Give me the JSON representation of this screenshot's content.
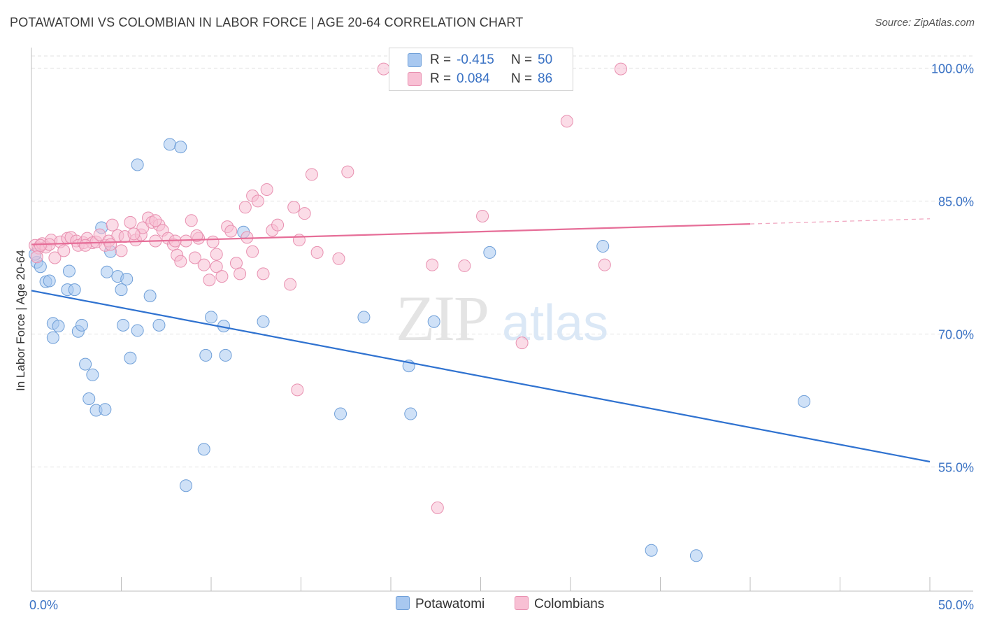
{
  "title": "POTAWATOMI VS COLOMBIAN IN LABOR FORCE | AGE 20-64 CORRELATION CHART",
  "source": "Source: ZipAtlas.com",
  "watermark": {
    "zip": "ZIP",
    "atlas": "atlas"
  },
  "stats": [
    {
      "r_label": "R =",
      "r_value": "-0.415",
      "n_label": "N =",
      "n_value": "50",
      "color": "#a8c8f0",
      "border": "#6f9fd8"
    },
    {
      "r_label": "R =",
      "r_value": "0.084",
      "n_label": "N =",
      "n_value": "86",
      "color": "#f8c0d4",
      "border": "#e890b0"
    }
  ],
  "legend": [
    {
      "label": "Potawatomi",
      "color": "#a8c8f0",
      "border": "#6f9fd8"
    },
    {
      "label": "Colombians",
      "color": "#f8c0d4",
      "border": "#e890b0"
    }
  ],
  "chart_data": {
    "type": "scatter",
    "title": "POTAWATOMI VS COLOMBIAN IN LABOR FORCE | AGE 20-64 CORRELATION CHART",
    "xlabel": "",
    "ylabel": "In Labor Force | Age 20-64",
    "xlim": [
      0,
      50
    ],
    "ylim": [
      41,
      102
    ],
    "x_tick_labels": [
      {
        "value": 0,
        "label": "0.0%"
      },
      {
        "value": 50,
        "label": "50.0%"
      }
    ],
    "x_minor_ticks": [
      5,
      10,
      15,
      20,
      25,
      30,
      35,
      40,
      45
    ],
    "y_tick_labels": [
      {
        "value": 100,
        "label": "100.0%"
      },
      {
        "value": 85,
        "label": "85.0%"
      },
      {
        "value": 70,
        "label": "70.0%"
      },
      {
        "value": 55,
        "label": "55.0%"
      }
    ],
    "grid": true,
    "legend_position": "bottom-center",
    "series": [
      {
        "name": "Potawatomi",
        "fill": "#a8c8f0",
        "stroke": "#6f9fd8",
        "trend_color": "#2f72d0",
        "trend": {
          "x0": 0,
          "y0": 74.9,
          "x1": 50,
          "y1": 55.6,
          "solid_until": 50
        },
        "points": [
          [
            0.3,
            78.1
          ],
          [
            0.5,
            77.6
          ],
          [
            0.8,
            75.9
          ],
          [
            1.0,
            76.0
          ],
          [
            2.1,
            77.1
          ],
          [
            2.0,
            75.0
          ],
          [
            2.4,
            75.0
          ],
          [
            1.2,
            71.2
          ],
          [
            1.5,
            70.9
          ],
          [
            2.6,
            70.3
          ],
          [
            2.8,
            71.0
          ],
          [
            1.2,
            69.6
          ],
          [
            3.0,
            66.6
          ],
          [
            3.4,
            65.4
          ],
          [
            3.2,
            62.7
          ],
          [
            3.6,
            61.4
          ],
          [
            4.1,
            61.5
          ],
          [
            3.9,
            82.0
          ],
          [
            4.2,
            77.0
          ],
          [
            4.4,
            79.3
          ],
          [
            4.8,
            76.5
          ],
          [
            5.0,
            75.0
          ],
          [
            5.3,
            76.2
          ],
          [
            5.1,
            71.0
          ],
          [
            5.5,
            67.3
          ],
          [
            5.9,
            70.4
          ],
          [
            5.9,
            89.1
          ],
          [
            6.6,
            74.3
          ],
          [
            7.1,
            71.0
          ],
          [
            7.7,
            91.4
          ],
          [
            8.3,
            91.1
          ],
          [
            8.6,
            52.9
          ],
          [
            9.6,
            57.0
          ],
          [
            9.7,
            67.6
          ],
          [
            10.0,
            71.9
          ],
          [
            10.7,
            70.9
          ],
          [
            10.8,
            67.6
          ],
          [
            11.8,
            81.5
          ],
          [
            12.9,
            71.4
          ],
          [
            17.2,
            61.0
          ],
          [
            18.5,
            71.9
          ],
          [
            21.0,
            66.4
          ],
          [
            21.1,
            61.0
          ],
          [
            22.4,
            71.4
          ],
          [
            25.5,
            79.2
          ],
          [
            31.8,
            79.9
          ],
          [
            43.0,
            62.4
          ],
          [
            34.5,
            45.6
          ],
          [
            37.0,
            45.0
          ],
          [
            0.2,
            79.0
          ]
        ]
      },
      {
        "name": "Colombians",
        "fill": "#f8c0d4",
        "stroke": "#e890b0",
        "trend_color": "#e66e98",
        "trend": {
          "x0": 0,
          "y0": 80.1,
          "x1": 50,
          "y1": 83.0,
          "solid_until": 40
        },
        "points": [
          [
            0.2,
            80.0
          ],
          [
            0.4,
            79.7
          ],
          [
            0.3,
            78.7
          ],
          [
            0.6,
            80.2
          ],
          [
            0.8,
            79.8
          ],
          [
            1.1,
            80.6
          ],
          [
            1.3,
            78.6
          ],
          [
            1.6,
            80.4
          ],
          [
            1.8,
            79.4
          ],
          [
            2.0,
            80.8
          ],
          [
            2.2,
            80.9
          ],
          [
            2.5,
            80.5
          ],
          [
            2.6,
            80.0
          ],
          [
            2.9,
            80.3
          ],
          [
            3.1,
            80.8
          ],
          [
            3.4,
            80.3
          ],
          [
            3.6,
            80.4
          ],
          [
            3.8,
            81.2
          ],
          [
            4.1,
            80.0
          ],
          [
            4.3,
            80.5
          ],
          [
            4.5,
            82.3
          ],
          [
            4.8,
            81.1
          ],
          [
            5.0,
            79.4
          ],
          [
            5.2,
            81.0
          ],
          [
            5.5,
            82.6
          ],
          [
            5.8,
            80.6
          ],
          [
            6.1,
            81.2
          ],
          [
            6.2,
            82.0
          ],
          [
            6.5,
            83.1
          ],
          [
            6.7,
            82.6
          ],
          [
            6.9,
            80.5
          ],
          [
            7.1,
            82.3
          ],
          [
            7.3,
            81.7
          ],
          [
            7.6,
            80.8
          ],
          [
            7.9,
            80.1
          ],
          [
            8.1,
            78.9
          ],
          [
            8.3,
            78.2
          ],
          [
            8.6,
            80.5
          ],
          [
            8.9,
            82.8
          ],
          [
            9.1,
            78.6
          ],
          [
            9.3,
            80.8
          ],
          [
            9.6,
            77.8
          ],
          [
            9.9,
            76.1
          ],
          [
            10.1,
            80.4
          ],
          [
            10.3,
            77.6
          ],
          [
            10.6,
            76.5
          ],
          [
            10.9,
            82.1
          ],
          [
            11.1,
            81.6
          ],
          [
            11.4,
            78.0
          ],
          [
            11.6,
            76.8
          ],
          [
            11.9,
            84.3
          ],
          [
            12.3,
            85.6
          ],
          [
            12.6,
            85.0
          ],
          [
            12.9,
            76.8
          ],
          [
            13.1,
            86.3
          ],
          [
            13.4,
            81.7
          ],
          [
            13.7,
            82.3
          ],
          [
            14.4,
            75.6
          ],
          [
            14.6,
            84.3
          ],
          [
            14.9,
            80.6
          ],
          [
            15.2,
            83.6
          ],
          [
            15.6,
            88.0
          ],
          [
            15.9,
            79.2
          ],
          [
            17.1,
            78.5
          ],
          [
            17.6,
            88.3
          ],
          [
            19.6,
            99.9
          ],
          [
            22.3,
            77.8
          ],
          [
            22.6,
            50.4
          ],
          [
            24.1,
            77.7
          ],
          [
            25.1,
            83.3
          ],
          [
            27.3,
            69.0
          ],
          [
            29.8,
            94.0
          ],
          [
            31.9,
            77.8
          ],
          [
            32.8,
            99.9
          ],
          [
            14.8,
            63.7
          ],
          [
            12.3,
            79.3
          ],
          [
            12.0,
            80.9
          ],
          [
            10.3,
            79.0
          ],
          [
            9.2,
            81.1
          ],
          [
            8.0,
            80.5
          ],
          [
            6.9,
            82.8
          ],
          [
            5.7,
            81.3
          ],
          [
            4.4,
            80.1
          ],
          [
            3.0,
            80.0
          ],
          [
            1.0,
            80.1
          ],
          [
            0.5,
            80.0
          ]
        ]
      }
    ]
  }
}
